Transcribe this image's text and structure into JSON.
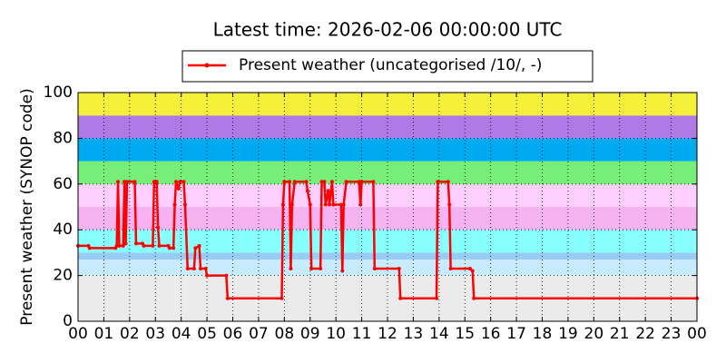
{
  "chart_data": {
    "type": "line",
    "title": "Latest time: 2026-02-06 00:00:00 UTC",
    "y_label": "Present weather (SYNOP code)",
    "x": [
      0,
      0.4,
      0.45,
      1.45,
      1.5,
      1.55,
      1.6,
      1.75,
      1.8,
      1.85,
      1.9,
      2.2,
      2.25,
      2.5,
      2.55,
      2.9,
      2.95,
      3.05,
      3.1,
      3.15,
      3.5,
      3.55,
      3.7,
      3.75,
      3.8,
      3.9,
      3.95,
      4.1,
      4.15,
      4.25,
      4.5,
      4.55,
      4.7,
      4.75,
      4.95,
      5.0,
      5.75,
      5.8,
      7.9,
      7.95,
      8.0,
      8.2,
      8.25,
      8.3,
      8.4,
      8.85,
      8.9,
      9.0,
      9.05,
      9.4,
      9.45,
      9.55,
      9.6,
      9.7,
      9.75,
      9.85,
      9.9,
      10.2,
      10.25,
      10.3,
      10.4,
      10.9,
      10.95,
      11.0,
      11.45,
      11.5,
      12.45,
      12.5,
      13.9,
      13.95,
      14.35,
      14.4,
      14.45,
      15.2,
      15.3,
      15.35,
      24
    ],
    "series": [
      {
        "name": "Present weather (uncategorised /10/, -)",
        "color": "#ff0000",
        "values": [
          33,
          33,
          32,
          32,
          33,
          61,
          33,
          33,
          61,
          34,
          61,
          61,
          34,
          34,
          33,
          33,
          61,
          61,
          41,
          33,
          33,
          32,
          32,
          51,
          61,
          58,
          61,
          61,
          51,
          23,
          23,
          32,
          33,
          23,
          23,
          20,
          20,
          10,
          10,
          51,
          61,
          61,
          23,
          51,
          61,
          61,
          57,
          51,
          23,
          23,
          61,
          61,
          51,
          57,
          51,
          61,
          51,
          51,
          22,
          51,
          61,
          61,
          51,
          61,
          61,
          23,
          23,
          10,
          10,
          61,
          61,
          51,
          23,
          23,
          22,
          10,
          10
        ]
      }
    ],
    "xlim": [
      0,
      24
    ],
    "xticks": [
      {
        "value": 0,
        "label": "00"
      },
      {
        "value": 1,
        "label": "01"
      },
      {
        "value": 2,
        "label": "02"
      },
      {
        "value": 3,
        "label": "03"
      },
      {
        "value": 4,
        "label": "04"
      },
      {
        "value": 5,
        "label": "05"
      },
      {
        "value": 6,
        "label": "06"
      },
      {
        "value": 7,
        "label": "07"
      },
      {
        "value": 8,
        "label": "08"
      },
      {
        "value": 9,
        "label": "09"
      },
      {
        "value": 10,
        "label": "10"
      },
      {
        "value": 11,
        "label": "11"
      },
      {
        "value": 12,
        "label": "12"
      },
      {
        "value": 13,
        "label": "13"
      },
      {
        "value": 14,
        "label": "14"
      },
      {
        "value": 15,
        "label": "15"
      },
      {
        "value": 16,
        "label": "16"
      },
      {
        "value": 17,
        "label": "17"
      },
      {
        "value": 18,
        "label": "18"
      },
      {
        "value": 19,
        "label": "19"
      },
      {
        "value": 20,
        "label": "20"
      },
      {
        "value": 21,
        "label": "21"
      },
      {
        "value": 22,
        "label": "22"
      },
      {
        "value": 23,
        "label": "23"
      },
      {
        "value": 24,
        "label": "00"
      }
    ],
    "ylim": [
      0,
      100
    ],
    "yticks": [
      0,
      20,
      40,
      60,
      80,
      100
    ],
    "grid": true,
    "legend": "top",
    "bands": [
      {
        "from": 0,
        "to": 20,
        "color": "#ebebeb"
      },
      {
        "from": 20,
        "to": 27,
        "color": "#c8ecff"
      },
      {
        "from": 27,
        "to": 30,
        "color": "#99ccf5"
      },
      {
        "from": 30,
        "to": 40,
        "color": "#88ffff"
      },
      {
        "from": 40,
        "to": 50,
        "color": "#f5b3f2"
      },
      {
        "from": 50,
        "to": 60,
        "color": "#ffd0ff"
      },
      {
        "from": 60,
        "to": 70,
        "color": "#77ee77"
      },
      {
        "from": 70,
        "to": 80,
        "color": "#00aaf0"
      },
      {
        "from": 80,
        "to": 90,
        "color": "#b07ae6"
      },
      {
        "from": 90,
        "to": 100,
        "color": "#f5f03a"
      }
    ]
  }
}
